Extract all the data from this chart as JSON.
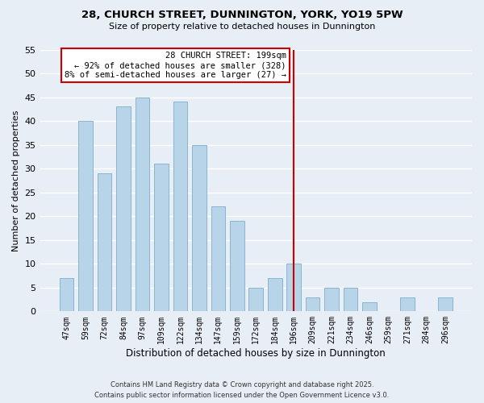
{
  "title": "28, CHURCH STREET, DUNNINGTON, YORK, YO19 5PW",
  "subtitle": "Size of property relative to detached houses in Dunnington",
  "xlabel": "Distribution of detached houses by size in Dunnington",
  "ylabel": "Number of detached properties",
  "bar_labels": [
    "47sqm",
    "59sqm",
    "72sqm",
    "84sqm",
    "97sqm",
    "109sqm",
    "122sqm",
    "134sqm",
    "147sqm",
    "159sqm",
    "172sqm",
    "184sqm",
    "196sqm",
    "209sqm",
    "221sqm",
    "234sqm",
    "246sqm",
    "259sqm",
    "271sqm",
    "284sqm",
    "296sqm"
  ],
  "bar_values": [
    7,
    40,
    29,
    43,
    45,
    31,
    44,
    35,
    22,
    19,
    5,
    7,
    10,
    3,
    5,
    5,
    2,
    0,
    3,
    0,
    3
  ],
  "bar_color": "#b8d4e8",
  "bar_edge_color": "#8ab4d0",
  "background_color": "#e8eef5",
  "grid_color": "#ffffff",
  "ylim": [
    0,
    55
  ],
  "yticks": [
    0,
    5,
    10,
    15,
    20,
    25,
    30,
    35,
    40,
    45,
    50,
    55
  ],
  "annotation_title": "28 CHURCH STREET: 199sqm",
  "annotation_line1": "← 92% of detached houses are smaller (328)",
  "annotation_line2": "8% of semi-detached houses are larger (27) →",
  "vline_bar_index": 12,
  "vline_color": "#cc0000",
  "footer_line1": "Contains HM Land Registry data © Crown copyright and database right 2025.",
  "footer_line2": "Contains public sector information licensed under the Open Government Licence v3.0."
}
